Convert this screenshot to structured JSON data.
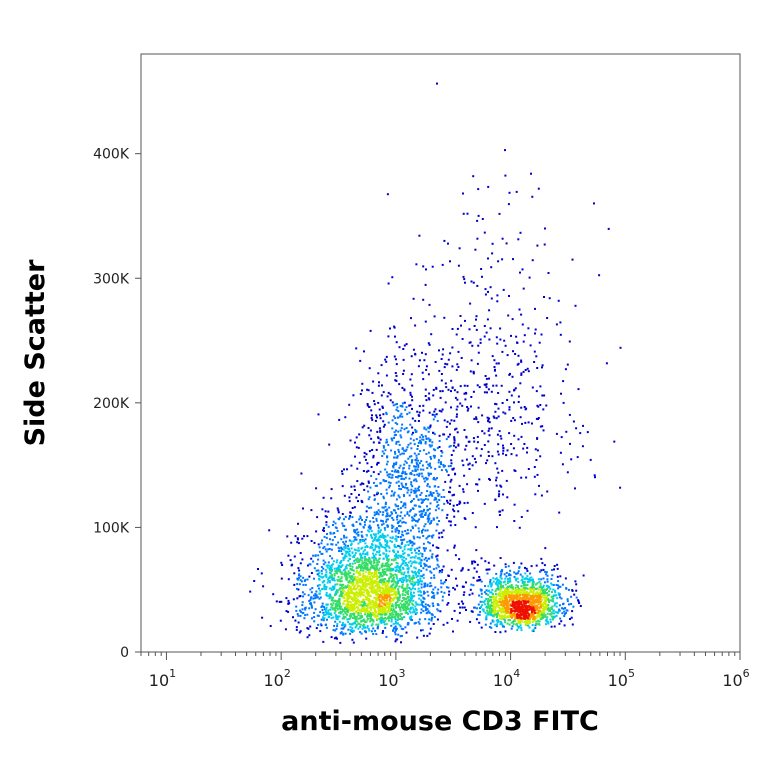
{
  "chart_data": {
    "type": "scatter",
    "title": "",
    "xlabel": "anti-mouse CD3 FITC",
    "ylabel": "Side Scatter",
    "x_scale": "log",
    "xlim": [
      6,
      1000000
    ],
    "ylim": [
      0,
      480000
    ],
    "x_ticks": [
      {
        "value": 10,
        "base": "10",
        "exp": "1"
      },
      {
        "value": 100,
        "base": "10",
        "exp": "2"
      },
      {
        "value": 1000,
        "base": "10",
        "exp": "3"
      },
      {
        "value": 10000,
        "base": "10",
        "exp": "4"
      },
      {
        "value": 100000,
        "base": "10",
        "exp": "5"
      },
      {
        "value": 1000000,
        "base": "10",
        "exp": "6"
      }
    ],
    "y_ticks": [
      {
        "value": 0,
        "label": "0"
      },
      {
        "value": 100000,
        "label": "100K"
      },
      {
        "value": 200000,
        "label": "200K"
      },
      {
        "value": 300000,
        "label": "300K"
      },
      {
        "value": 400000,
        "label": "400K"
      }
    ],
    "grid": false,
    "legend": "none",
    "color_map": [
      "#0000cc",
      "#0077ff",
      "#00ccee",
      "#33dd66",
      "#ccee00",
      "#ff9900",
      "#ee1100"
    ],
    "populations": [
      {
        "x_center": 600,
        "y_center": 38000,
        "x_spread_log10": 0.3,
        "y_spread": 32000,
        "count": 2600
      },
      {
        "x_center": 1300,
        "y_center": 120000,
        "x_spread_log10": 0.25,
        "y_spread": 60000,
        "count": 900
      },
      {
        "x_center": 12000,
        "y_center": 32000,
        "x_spread_log10": 0.18,
        "y_spread": 16000,
        "count": 1400
      },
      {
        "x_center": 8000,
        "y_center": 170000,
        "x_spread_log10": 0.35,
        "y_spread": 90000,
        "count": 450
      }
    ]
  }
}
